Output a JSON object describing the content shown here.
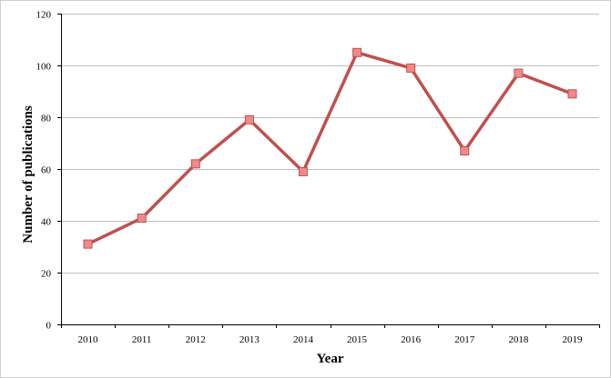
{
  "chart_data": {
    "type": "line",
    "title": "",
    "xlabel": "Year",
    "ylabel": "Number of publications",
    "categories": [
      "2010",
      "2011",
      "2012",
      "2013",
      "2014",
      "2015",
      "2016",
      "2017",
      "2018",
      "2019"
    ],
    "series": [
      {
        "values": [
          31,
          41,
          62,
          79,
          59,
          105,
          99,
          67,
          97,
          89
        ],
        "color": "#c0504d",
        "marker_color": "#f08a8a",
        "marker": "square"
      }
    ],
    "ylim": [
      0,
      120
    ],
    "yticks": [
      "0",
      "20",
      "40",
      "60",
      "80",
      "100",
      "120"
    ],
    "grid": true,
    "legend": "none"
  }
}
